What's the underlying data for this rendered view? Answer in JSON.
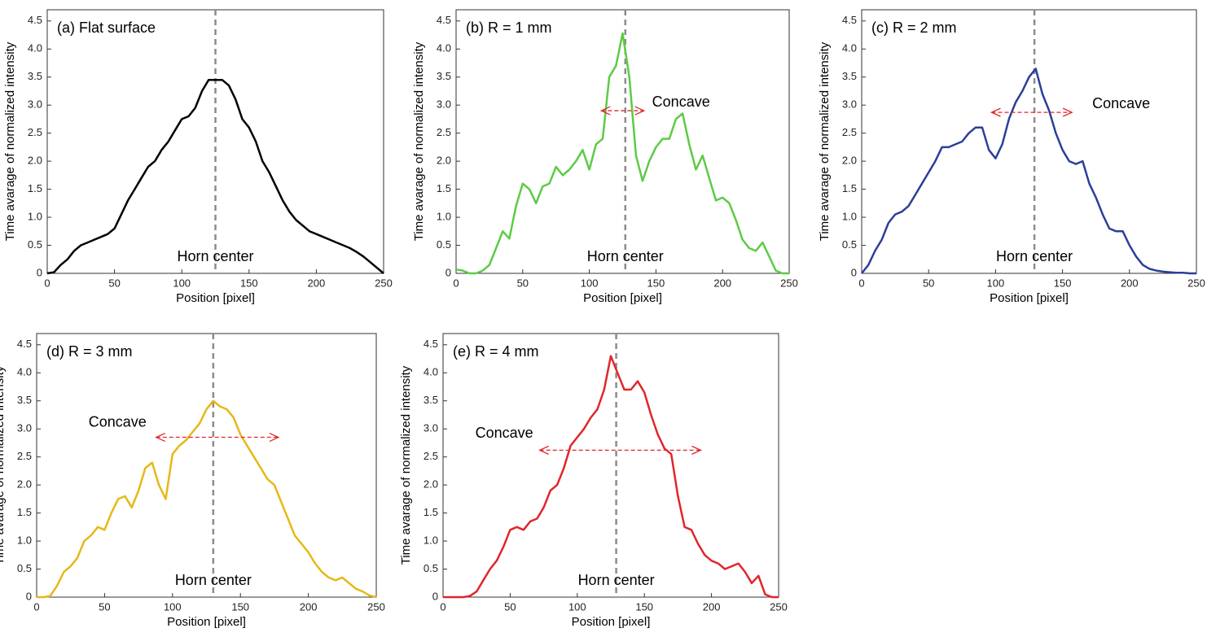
{
  "chart_data": [
    {
      "type": "line",
      "title": "(a) Flat surface",
      "xlabel": "Position [pixel]",
      "ylabel": "Time avarage of normalized intensity",
      "x": [
        0,
        5,
        10,
        15,
        20,
        25,
        30,
        35,
        40,
        45,
        50,
        55,
        60,
        65,
        70,
        75,
        80,
        85,
        90,
        95,
        100,
        105,
        110,
        115,
        120,
        125,
        130,
        135,
        140,
        145,
        150,
        155,
        160,
        165,
        170,
        175,
        180,
        185,
        190,
        195,
        200,
        205,
        210,
        215,
        220,
        225,
        230,
        235,
        240,
        245,
        250
      ],
      "series": [
        {
          "color": "#000000",
          "values": [
            0,
            0.02,
            0.15,
            0.25,
            0.4,
            0.5,
            0.55,
            0.6,
            0.65,
            0.7,
            0.8,
            1.05,
            1.3,
            1.5,
            1.7,
            1.9,
            2.0,
            2.2,
            2.35,
            2.55,
            2.75,
            2.8,
            2.95,
            3.25,
            3.45,
            3.45,
            3.45,
            3.35,
            3.1,
            2.75,
            2.6,
            2.35,
            2.0,
            1.8,
            1.55,
            1.3,
            1.1,
            0.95,
            0.85,
            0.75,
            0.7,
            0.65,
            0.6,
            0.55,
            0.5,
            0.45,
            0.38,
            0.3,
            0.2,
            0.1,
            0
          ]
        }
      ],
      "xlim": [
        0,
        250
      ],
      "ylim": [
        0,
        4.7
      ],
      "xticks": [
        0,
        50,
        100,
        150,
        200,
        250
      ],
      "yticks": [
        0,
        0.5,
        {
          "value": 1,
          "label": "1.0"
        },
        1.5,
        {
          "value": 2,
          "label": "2.0"
        },
        2.5,
        {
          "value": 3,
          "label": "3.0"
        },
        3.5,
        {
          "value": 4,
          "label": "4.0"
        },
        4.5
      ],
      "vline": {
        "x": 125,
        "label": "Horn center",
        "color": "#8c8c8c"
      }
    },
    {
      "type": "line",
      "title": "(b) R = 1 mm",
      "xlabel": "Position [pixel]",
      "ylabel": "Time avarage of normalized intensity",
      "x": [
        0,
        5,
        10,
        15,
        20,
        25,
        30,
        35,
        40,
        45,
        50,
        55,
        60,
        65,
        70,
        75,
        80,
        85,
        90,
        95,
        100,
        105,
        110,
        115,
        120,
        125,
        130,
        135,
        140,
        145,
        150,
        155,
        160,
        165,
        170,
        175,
        180,
        185,
        190,
        195,
        200,
        205,
        210,
        215,
        220,
        225,
        230,
        235,
        240,
        245,
        250
      ],
      "series": [
        {
          "color": "#5ccb45",
          "values": [
            0.07,
            0.05,
            0,
            0,
            0.05,
            0.15,
            0.45,
            0.75,
            0.62,
            1.2,
            1.6,
            1.5,
            1.25,
            1.55,
            1.6,
            1.9,
            1.75,
            1.85,
            2.0,
            2.2,
            1.85,
            2.3,
            2.4,
            3.5,
            3.7,
            4.28,
            3.5,
            2.1,
            1.65,
            2.0,
            2.25,
            2.4,
            2.4,
            2.75,
            2.85,
            2.3,
            1.85,
            2.1,
            1.7,
            1.3,
            1.35,
            1.25,
            0.95,
            0.6,
            0.45,
            0.4,
            0.55,
            0.3,
            0.05,
            0,
            0
          ]
        }
      ],
      "xlim": [
        0,
        250
      ],
      "ylim": [
        0,
        4.7
      ],
      "xticks": [
        0,
        50,
        100,
        150,
        200,
        250
      ],
      "yticks": [
        0,
        0.5,
        {
          "value": 1,
          "label": "1.0"
        },
        1.5,
        {
          "value": 2,
          "label": "2.0"
        },
        2.5,
        {
          "value": 3,
          "label": "3.0"
        },
        3.5,
        {
          "value": 4,
          "label": "4.0"
        },
        4.5
      ],
      "vline": {
        "x": 127,
        "label": "Horn center",
        "color": "#8c8c8c"
      },
      "arrow": {
        "x": [
          109,
          141
        ],
        "y": 2.9,
        "label": "Concave",
        "color": "#e0262a"
      }
    },
    {
      "type": "line",
      "title": "(c) R = 2 mm",
      "xlabel": "Position [pixel]",
      "ylabel": "Time avarage of normalized intensity",
      "x": [
        0,
        5,
        10,
        15,
        20,
        25,
        30,
        35,
        40,
        45,
        50,
        55,
        60,
        65,
        70,
        75,
        80,
        85,
        90,
        95,
        100,
        105,
        110,
        115,
        120,
        125,
        130,
        135,
        140,
        145,
        150,
        155,
        160,
        165,
        170,
        175,
        180,
        185,
        190,
        195,
        200,
        205,
        210,
        215,
        220,
        225,
        230,
        235,
        240,
        245,
        250
      ],
      "series": [
        {
          "color": "#2a3f9a",
          "values": [
            0,
            0.15,
            0.4,
            0.6,
            0.9,
            1.05,
            1.1,
            1.2,
            1.4,
            1.6,
            1.8,
            2.0,
            2.25,
            2.25,
            2.3,
            2.35,
            2.5,
            2.6,
            2.6,
            2.2,
            2.05,
            2.3,
            2.75,
            3.05,
            3.25,
            3.5,
            3.65,
            3.2,
            2.9,
            2.5,
            2.2,
            2.0,
            1.95,
            2.0,
            1.6,
            1.35,
            1.05,
            0.8,
            0.75,
            0.75,
            0.5,
            0.3,
            0.15,
            0.08,
            0.05,
            0.03,
            0.02,
            0.01,
            0.01,
            0,
            0
          ]
        }
      ],
      "xlim": [
        0,
        250
      ],
      "ylim": [
        0,
        4.7
      ],
      "xticks": [
        0,
        50,
        100,
        150,
        200,
        250
      ],
      "yticks": [
        0,
        0.5,
        {
          "value": 1,
          "label": "1.0"
        },
        1.5,
        {
          "value": 2,
          "label": "2.0"
        },
        2.5,
        {
          "value": 3,
          "label": "3.0"
        },
        3.5,
        {
          "value": 4,
          "label": "4.0"
        },
        4.5
      ],
      "vline": {
        "x": 129,
        "label": "Horn center",
        "color": "#8c8c8c"
      },
      "arrow": {
        "x": [
          97,
          157
        ],
        "y": 2.87,
        "label": "Concave",
        "color": "#e0262a"
      }
    },
    {
      "type": "line",
      "title": "(d) R = 3 mm",
      "xlabel": "Position [pixel]",
      "ylabel": "Time avarage of normalized intensity",
      "x": [
        0,
        5,
        10,
        15,
        20,
        25,
        30,
        35,
        40,
        45,
        50,
        55,
        60,
        65,
        70,
        75,
        80,
        85,
        90,
        95,
        100,
        105,
        110,
        115,
        120,
        125,
        130,
        135,
        140,
        145,
        150,
        155,
        160,
        165,
        170,
        175,
        180,
        185,
        190,
        195,
        200,
        205,
        210,
        215,
        220,
        225,
        230,
        235,
        240,
        245,
        250
      ],
      "series": [
        {
          "color": "#e6b817",
          "values": [
            0,
            0,
            0.02,
            0.2,
            0.45,
            0.55,
            0.7,
            1.0,
            1.1,
            1.25,
            1.2,
            1.5,
            1.75,
            1.8,
            1.6,
            1.9,
            2.3,
            2.4,
            2.0,
            1.75,
            2.55,
            2.7,
            2.8,
            2.95,
            3.1,
            3.35,
            3.5,
            3.4,
            3.35,
            3.2,
            2.9,
            2.7,
            2.5,
            2.3,
            2.1,
            2.0,
            1.7,
            1.4,
            1.1,
            0.95,
            0.8,
            0.6,
            0.45,
            0.35,
            0.3,
            0.35,
            0.25,
            0.15,
            0.1,
            0.03,
            0
          ]
        }
      ],
      "xlim": [
        0,
        250
      ],
      "ylim": [
        0,
        4.7
      ],
      "xticks": [
        0,
        50,
        100,
        150,
        200,
        250
      ],
      "yticks": [
        0,
        0.5,
        {
          "value": 1,
          "label": "1.0"
        },
        1.5,
        {
          "value": 2,
          "label": "2.0"
        },
        2.5,
        {
          "value": 3,
          "label": "3.0"
        },
        3.5,
        {
          "value": 4,
          "label": "4.0"
        },
        4.5
      ],
      "vline": {
        "x": 130,
        "label": "Horn center",
        "color": "#8c8c8c"
      },
      "arrow": {
        "x": [
          88,
          178
        ],
        "y": 2.85,
        "label": "Concave",
        "color": "#e0262a"
      }
    },
    {
      "type": "line",
      "title": "(e) R = 4 mm",
      "xlabel": "Position [pixel]",
      "ylabel": "Time avarage of normalized intensity",
      "x": [
        0,
        5,
        10,
        15,
        20,
        25,
        30,
        35,
        40,
        45,
        50,
        55,
        60,
        65,
        70,
        75,
        80,
        85,
        90,
        95,
        100,
        105,
        110,
        115,
        120,
        125,
        130,
        135,
        140,
        145,
        150,
        155,
        160,
        165,
        170,
        175,
        180,
        185,
        190,
        195,
        200,
        205,
        210,
        215,
        220,
        225,
        230,
        235,
        240,
        245,
        250
      ],
      "series": [
        {
          "color": "#e0262a",
          "values": [
            0,
            0,
            0,
            0,
            0.02,
            0.1,
            0.3,
            0.5,
            0.65,
            0.9,
            1.2,
            1.25,
            1.2,
            1.35,
            1.4,
            1.6,
            1.9,
            2.0,
            2.3,
            2.7,
            2.85,
            3.0,
            3.2,
            3.35,
            3.7,
            4.3,
            4.0,
            3.7,
            3.7,
            3.85,
            3.65,
            3.25,
            2.9,
            2.65,
            2.55,
            1.8,
            1.25,
            1.2,
            0.95,
            0.75,
            0.65,
            0.6,
            0.5,
            0.55,
            0.6,
            0.45,
            0.25,
            0.38,
            0.05,
            0,
            0
          ]
        }
      ],
      "xlim": [
        0,
        250
      ],
      "ylim": [
        0,
        4.7
      ],
      "xticks": [
        0,
        50,
        100,
        150,
        200,
        250
      ],
      "yticks": [
        0,
        0.5,
        {
          "value": 1,
          "label": "1.0"
        },
        1.5,
        {
          "value": 2,
          "label": "2.0"
        },
        2.5,
        {
          "value": 3,
          "label": "3.0"
        },
        3.5,
        {
          "value": 4,
          "label": "4.0"
        },
        4.5
      ],
      "vline": {
        "x": 129,
        "label": "Horn center",
        "color": "#8c8c8c"
      },
      "arrow": {
        "x": [
          72,
          192
        ],
        "y": 2.62,
        "label": "Concave",
        "color": "#e0262a"
      }
    }
  ]
}
